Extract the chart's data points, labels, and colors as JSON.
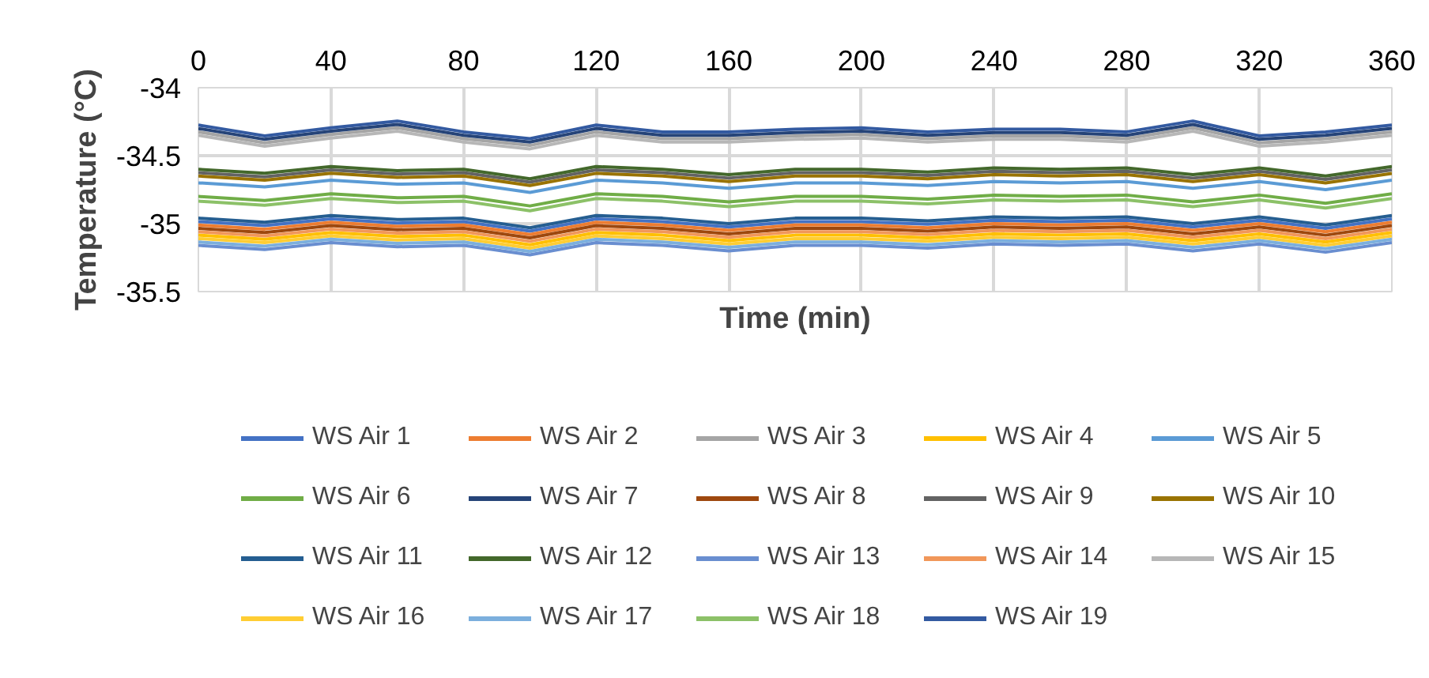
{
  "chart_data": {
    "type": "line",
    "xlabel": "Time (min)",
    "ylabel": "Temperature (°C)",
    "x": [
      0,
      20,
      40,
      60,
      80,
      100,
      120,
      140,
      160,
      180,
      200,
      220,
      240,
      260,
      280,
      300,
      320,
      340,
      360
    ],
    "xlim": [
      0,
      360
    ],
    "xticks": [
      0,
      40,
      80,
      120,
      160,
      200,
      240,
      280,
      320,
      360
    ],
    "ylim": [
      -35.5,
      -34
    ],
    "yticks": [
      -35.5,
      -35,
      -34.5,
      -34
    ],
    "grid": true,
    "legend": "bottom",
    "marker": "none",
    "line_style": "solid",
    "series": [
      {
        "name": "WS Air 1",
        "color": "#4472c4",
        "values": [
          -34.985,
          -35.015,
          -34.965,
          -34.995,
          -34.985,
          -35.055,
          -34.965,
          -34.985,
          -35.025,
          -34.985,
          -34.985,
          -35.005,
          -34.975,
          -34.985,
          -34.975,
          -35.025,
          -34.975,
          -35.035,
          -34.965
        ]
      },
      {
        "name": "WS Air 2",
        "color": "#ed7d31",
        "values": [
          -35.01,
          -35.04,
          -34.99,
          -35.02,
          -35.01,
          -35.08,
          -34.99,
          -35.01,
          -35.05,
          -35.01,
          -35.01,
          -35.03,
          -35,
          -35.01,
          -35,
          -35.05,
          -35,
          -35.06,
          -34.99
        ]
      },
      {
        "name": "WS Air 3",
        "color": "#a5a5a5",
        "values": [
          -34.325,
          -34.405,
          -34.345,
          -34.295,
          -34.375,
          -34.425,
          -34.325,
          -34.375,
          -34.375,
          -34.355,
          -34.345,
          -34.375,
          -34.355,
          -34.355,
          -34.375,
          -34.295,
          -34.405,
          -34.375,
          -34.325
        ]
      },
      {
        "name": "WS Air 4",
        "color": "#ffc000",
        "values": [
          -35.085,
          -35.115,
          -35.065,
          -35.095,
          -35.085,
          -35.155,
          -35.065,
          -35.085,
          -35.125,
          -35.085,
          -35.085,
          -35.105,
          -35.075,
          -35.085,
          -35.075,
          -35.125,
          -35.075,
          -35.135,
          -35.065
        ]
      },
      {
        "name": "WS Air 5",
        "color": "#5b9bd5",
        "values": [
          -34.7,
          -34.73,
          -34.68,
          -34.71,
          -34.7,
          -34.77,
          -34.68,
          -34.7,
          -34.74,
          -34.7,
          -34.7,
          -34.72,
          -34.69,
          -34.7,
          -34.69,
          -34.74,
          -34.69,
          -34.75,
          -34.68
        ]
      },
      {
        "name": "WS Air 6",
        "color": "#70ad47",
        "values": [
          -34.8,
          -34.83,
          -34.78,
          -34.81,
          -34.8,
          -34.87,
          -34.78,
          -34.8,
          -34.84,
          -34.8,
          -34.8,
          -34.82,
          -34.79,
          -34.8,
          -34.79,
          -34.84,
          -34.79,
          -34.85,
          -34.78
        ]
      },
      {
        "name": "WS Air 7",
        "color": "#264478",
        "values": [
          -34.3,
          -34.38,
          -34.32,
          -34.27,
          -34.35,
          -34.4,
          -34.3,
          -34.35,
          -34.35,
          -34.33,
          -34.32,
          -34.35,
          -34.33,
          -34.33,
          -34.35,
          -34.27,
          -34.38,
          -34.35,
          -34.3
        ]
      },
      {
        "name": "WS Air 8",
        "color": "#9e480e",
        "values": [
          -35.035,
          -35.065,
          -35.015,
          -35.045,
          -35.035,
          -35.105,
          -35.015,
          -35.035,
          -35.075,
          -35.035,
          -35.035,
          -35.055,
          -35.025,
          -35.035,
          -35.025,
          -35.075,
          -35.025,
          -35.085,
          -35.015
        ]
      },
      {
        "name": "WS Air 9",
        "color": "#636363",
        "values": [
          -34.625,
          -34.655,
          -34.605,
          -34.635,
          -34.625,
          -34.695,
          -34.605,
          -34.625,
          -34.665,
          -34.625,
          -34.625,
          -34.645,
          -34.615,
          -34.625,
          -34.615,
          -34.665,
          -34.615,
          -34.675,
          -34.605
        ]
      },
      {
        "name": "WS Air 10",
        "color": "#997300",
        "values": [
          -34.65,
          -34.68,
          -34.63,
          -34.66,
          -34.65,
          -34.72,
          -34.63,
          -34.65,
          -34.69,
          -34.65,
          -34.65,
          -34.67,
          -34.64,
          -34.65,
          -34.64,
          -34.69,
          -34.64,
          -34.7,
          -34.63
        ]
      },
      {
        "name": "WS Air 11",
        "color": "#255e91",
        "values": [
          -34.96,
          -34.99,
          -34.94,
          -34.97,
          -34.96,
          -35.03,
          -34.94,
          -34.96,
          -35,
          -34.96,
          -34.96,
          -34.98,
          -34.95,
          -34.96,
          -34.95,
          -35,
          -34.95,
          -35.01,
          -34.94
        ]
      },
      {
        "name": "WS Air 12",
        "color": "#43682b",
        "values": [
          -34.6,
          -34.63,
          -34.58,
          -34.61,
          -34.6,
          -34.67,
          -34.58,
          -34.6,
          -34.64,
          -34.6,
          -34.6,
          -34.62,
          -34.59,
          -34.6,
          -34.59,
          -34.64,
          -34.59,
          -34.65,
          -34.58
        ]
      },
      {
        "name": "WS Air 13",
        "color": "#698ed0",
        "values": [
          -35.16,
          -35.19,
          -35.14,
          -35.17,
          -35.16,
          -35.23,
          -35.14,
          -35.16,
          -35.2,
          -35.16,
          -35.16,
          -35.18,
          -35.15,
          -35.16,
          -35.15,
          -35.2,
          -35.15,
          -35.21,
          -35.14
        ]
      },
      {
        "name": "WS Air 14",
        "color": "#f1975a",
        "values": [
          -35.06,
          -35.09,
          -35.04,
          -35.07,
          -35.06,
          -35.13,
          -35.04,
          -35.06,
          -35.1,
          -35.06,
          -35.06,
          -35.08,
          -35.05,
          -35.06,
          -35.05,
          -35.1,
          -35.05,
          -35.11,
          -35.04
        ]
      },
      {
        "name": "WS Air 15",
        "color": "#b7b7b7",
        "values": [
          -34.35,
          -34.43,
          -34.37,
          -34.32,
          -34.4,
          -34.45,
          -34.35,
          -34.4,
          -34.4,
          -34.38,
          -34.37,
          -34.4,
          -34.38,
          -34.38,
          -34.4,
          -34.32,
          -34.43,
          -34.4,
          -34.35
        ]
      },
      {
        "name": "WS Air 16",
        "color": "#ffcd33",
        "values": [
          -35.11,
          -35.14,
          -35.09,
          -35.12,
          -35.11,
          -35.18,
          -35.09,
          -35.11,
          -35.15,
          -35.11,
          -35.11,
          -35.13,
          -35.1,
          -35.11,
          -35.1,
          -35.15,
          -35.1,
          -35.16,
          -35.09
        ]
      },
      {
        "name": "WS Air 17",
        "color": "#7cafdd",
        "values": [
          -35.135,
          -35.165,
          -35.115,
          -35.145,
          -35.135,
          -35.205,
          -35.115,
          -35.135,
          -35.175,
          -35.135,
          -35.135,
          -35.155,
          -35.125,
          -35.135,
          -35.125,
          -35.175,
          -35.125,
          -35.185,
          -35.115
        ]
      },
      {
        "name": "WS Air 18",
        "color": "#8cc168",
        "values": [
          -34.835,
          -34.865,
          -34.815,
          -34.845,
          -34.835,
          -34.905,
          -34.815,
          -34.835,
          -34.875,
          -34.835,
          -34.835,
          -34.855,
          -34.825,
          -34.835,
          -34.825,
          -34.875,
          -34.825,
          -34.885,
          -34.815
        ]
      },
      {
        "name": "WS Air 19",
        "color": "#335aa1",
        "values": [
          -34.275,
          -34.355,
          -34.295,
          -34.245,
          -34.325,
          -34.375,
          -34.275,
          -34.325,
          -34.325,
          -34.305,
          -34.295,
          -34.325,
          -34.305,
          -34.305,
          -34.325,
          -34.245,
          -34.355,
          -34.325,
          -34.275
        ]
      }
    ]
  }
}
